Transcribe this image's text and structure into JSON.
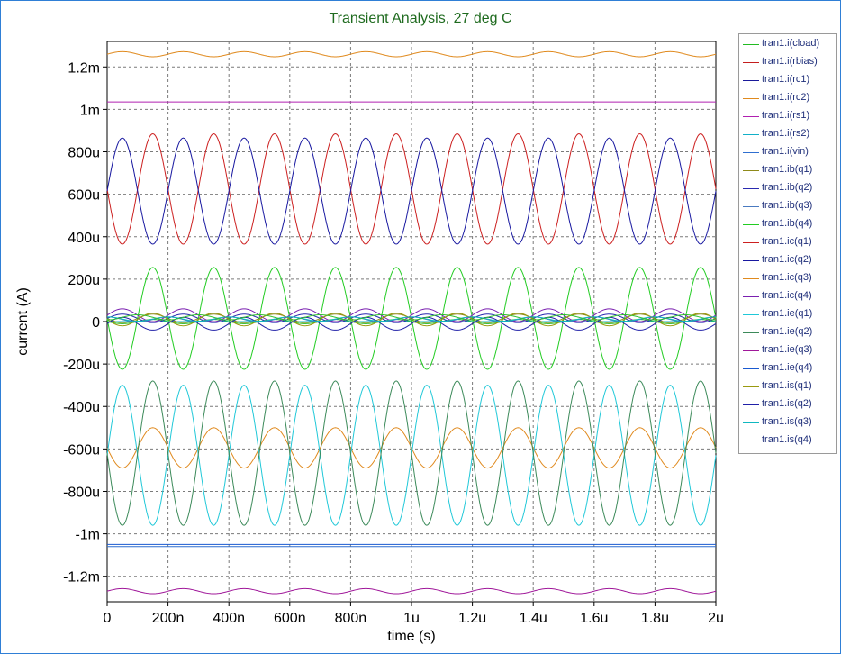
{
  "chart_data": {
    "type": "line",
    "title": "Transient Analysis, 27 deg C",
    "xlabel": "time (s)",
    "ylabel": "current (A)",
    "xlim": [
      0,
      2e-06
    ],
    "ylim": [
      -0.00132,
      0.00132
    ],
    "grid": true,
    "legend_position": "right",
    "x_ticks": [
      {
        "value": 0,
        "label": "0"
      },
      {
        "value": 2e-07,
        "label": "200n"
      },
      {
        "value": 4e-07,
        "label": "400n"
      },
      {
        "value": 6e-07,
        "label": "600n"
      },
      {
        "value": 8e-07,
        "label": "800n"
      },
      {
        "value": 1e-06,
        "label": "1u"
      },
      {
        "value": 1.2e-06,
        "label": "1.2u"
      },
      {
        "value": 1.4e-06,
        "label": "1.4u"
      },
      {
        "value": 1.6e-06,
        "label": "1.6u"
      },
      {
        "value": 1.8e-06,
        "label": "1.8u"
      },
      {
        "value": 2e-06,
        "label": "2u"
      }
    ],
    "y_ticks": [
      {
        "value": 0.0012,
        "label": "1.2m"
      },
      {
        "value": 0.001,
        "label": "1m"
      },
      {
        "value": 0.0008,
        "label": "800u"
      },
      {
        "value": 0.0006,
        "label": "600u"
      },
      {
        "value": 0.0004,
        "label": "400u"
      },
      {
        "value": 0.0002,
        "label": "200u"
      },
      {
        "value": 0,
        "label": "0"
      },
      {
        "value": -0.0002,
        "label": "-200u"
      },
      {
        "value": -0.0004,
        "label": "-400u"
      },
      {
        "value": -0.0006,
        "label": "-600u"
      },
      {
        "value": -0.0008,
        "label": "-800u"
      },
      {
        "value": -0.001,
        "label": "-1m"
      },
      {
        "value": -0.0012,
        "label": "-1.2m"
      }
    ],
    "signal_period": 2e-07,
    "series": [
      {
        "name": "tran1.i(cload)",
        "color": "#22bb22",
        "offset": 0,
        "amplitude": 1e-05,
        "phase": 0.5
      },
      {
        "name": "tran1.i(rbias)",
        "color": "#c41e1e",
        "offset": 0,
        "amplitude": 0,
        "phase": 0
      },
      {
        "name": "tran1.i(rc1)",
        "color": "#1a1a9a",
        "offset": 0,
        "amplitude": 0,
        "phase": 0
      },
      {
        "name": "tran1.i(rc2)",
        "color": "#e08a1e",
        "offset": 0.00126,
        "amplitude": 1.2e-05,
        "phase": 0
      },
      {
        "name": "tran1.i(rs1)",
        "color": "#b020b0",
        "offset": 0.001035,
        "amplitude": 0,
        "phase": 0
      },
      {
        "name": "tran1.i(rs2)",
        "color": "#12b0c8",
        "offset": 0,
        "amplitude": 0,
        "phase": 0
      },
      {
        "name": "tran1.i(vin)",
        "color": "#2f6fd0",
        "offset": -0.00106,
        "amplitude": 0,
        "phase": 0
      },
      {
        "name": "tran1.ib(q1)",
        "color": "#8f8a1a",
        "offset": 1.5e-05,
        "amplitude": 2e-05,
        "phase": 0.5
      },
      {
        "name": "tran1.ib(q2)",
        "color": "#2a2ab0",
        "offset": 1.5e-05,
        "amplitude": 2e-05,
        "phase": 0
      },
      {
        "name": "tran1.ib(q3)",
        "color": "#4a7ac0",
        "offset": 1e-05,
        "amplitude": 1.2e-05,
        "phase": 0.25
      },
      {
        "name": "tran1.ib(q4)",
        "color": "#22cc22",
        "offset": 1.5e-05,
        "amplitude": 0.00024,
        "phase": 0.5
      },
      {
        "name": "tran1.ic(q1)",
        "color": "#cc2020",
        "offset": 0.000625,
        "amplitude": 0.00026,
        "phase": 0.5
      },
      {
        "name": "tran1.ic(q2)",
        "color": "#1818a0",
        "offset": 0.000615,
        "amplitude": 0.00025,
        "phase": 0
      },
      {
        "name": "tran1.ic(q3)",
        "color": "#e08a1e",
        "offset": -0.000595,
        "amplitude": 9.5e-05,
        "phase": 0.5
      },
      {
        "name": "tran1.ic(q4)",
        "color": "#7a20b0",
        "offset": 3e-05,
        "amplitude": 3e-05,
        "phase": 0
      },
      {
        "name": "tran1.ie(q1)",
        "color": "#20c8d8",
        "offset": -0.00063,
        "amplitude": 0.00033,
        "phase": 0
      },
      {
        "name": "tran1.ie(q2)",
        "color": "#3c8a5a",
        "offset": -0.00062,
        "amplitude": 0.00034,
        "phase": 0.5
      },
      {
        "name": "tran1.ie(q3)",
        "color": "#a0189a",
        "offset": -0.00127,
        "amplitude": 1.2e-05,
        "phase": 0
      },
      {
        "name": "tran1.ie(q4)",
        "color": "#1a5ad0",
        "offset": -0.00105,
        "amplitude": 0,
        "phase": 0
      },
      {
        "name": "tran1.is(q1)",
        "color": "#9a9a10",
        "offset": 1e-05,
        "amplitude": 3e-05,
        "phase": 0.5
      },
      {
        "name": "tran1.is(q2)",
        "color": "#2020a8",
        "offset": -1e-05,
        "amplitude": 3e-05,
        "phase": 0
      },
      {
        "name": "tran1.is(q3)",
        "color": "#10b8c0",
        "offset": 1.2e-05,
        "amplitude": 1e-05,
        "phase": 0.25
      },
      {
        "name": "tran1.is(q4)",
        "color": "#30c030",
        "offset": 2e-05,
        "amplitude": 1.2e-05,
        "phase": 0.75
      }
    ]
  }
}
